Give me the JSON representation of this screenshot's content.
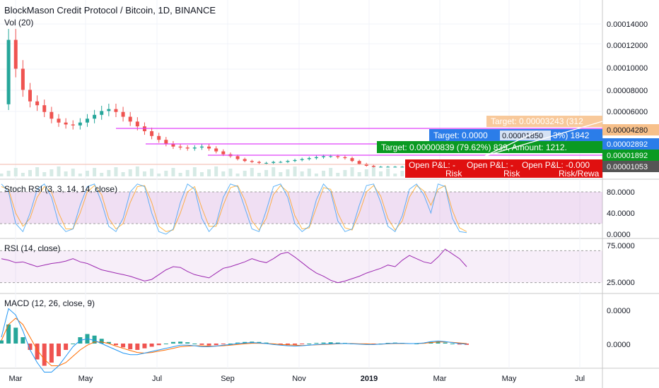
{
  "header": {
    "title": "BlockMason Credit Protocol / Bitcoin, 1D, BINANCE",
    "vol_label": "Vol (20)"
  },
  "colors": {
    "up": "#26a69a",
    "down": "#ef5350",
    "magenta": "#e040fb",
    "stoch_k": "#2196f3",
    "stoch_d": "#ff9800",
    "rsi": "#9c27b0",
    "macd_line": "#2196f3",
    "signal_line": "#ff6d00",
    "band_purple": "#9c27b0",
    "target_orange": "#f7c08a",
    "target_blue": "#2b7de9",
    "target_green": "#0a9a22",
    "stop_red": "#e01010"
  },
  "chart_data": [
    {
      "type": "candlestick",
      "name": "price",
      "x_labels": [
        "Mar",
        "May",
        "Jul",
        "Sep",
        "Nov",
        "2019",
        "Mar",
        "May",
        "Jul"
      ],
      "y_ticks": [
        "0.00014000",
        "0.00012000",
        "0.00010000",
        "0.00008000",
        "0.00006000"
      ],
      "ylim": [
        0.0,
        0.00016
      ],
      "close_series": [
        7.5e-05,
        0.000142,
        0.000112,
        9e-05,
        7.8e-05,
        7.4e-05,
        6.7e-05,
        6e-05,
        5.6e-05,
        5.4e-05,
        5.3e-05,
        5.6e-05,
        6e-05,
        6.4e-05,
        6.8e-05,
        7e-05,
        6.7e-05,
        6.2e-05,
        5.7e-05,
        5.2e-05,
        4.7e-05,
        4.2e-05,
        3.8e-05,
        3.4e-05,
        3.1e-05,
        3e-05,
        2.9e-05,
        3e-05,
        3.1e-05,
        2.9e-05,
        2.6e-05,
        2.3e-05,
        2.1e-05,
        1.8e-05,
        1.6e-05,
        1.5e-05,
        1.4e-05,
        1.4e-05,
        1.5e-05,
        1.5e-05,
        1.6e-05,
        1.7e-05,
        1.8e-05,
        1.9e-05,
        2e-05,
        2.1e-05,
        2.1e-05,
        2e-05,
        1.9e-05,
        1.6e-05,
        1.3e-05,
        1.1e-05,
        1e-05,
        1e-05,
        1e-05,
        1e-05,
        1e-05,
        9e-06,
        9e-06,
        9e-06,
        1e-05,
        1e-05,
        1e-05,
        1.1e-05,
        1e-05,
        1.1e-05
      ],
      "price_levels": [
        {
          "label": "0.00004280",
          "value": 4.28e-05
        },
        {
          "label": "0.00002892",
          "value": 2.892e-05
        },
        {
          "label": "0.00001892",
          "value": 1.892e-05
        },
        {
          "label": "0.00001053",
          "value": 1.053e-05
        }
      ],
      "annotations": {
        "target_orange": "Target: 0.00003243 (312",
        "target_blue": "Target: 0.0000",
        "target_blue_tail": "3%) 1842",
        "price_tag": "0.00001850",
        "target_green": "Target: 0.00000839 (79.62%) 839, Amount: 1212.",
        "open_pl": "Open P&L: -",
        "open_pl_2": "Open P&L: -",
        "open_pl_3": "Open P&L: -0.000",
        "risk": "Risk",
        "risk_2": "Risk",
        "risk_reward": "Risk/Rewa"
      }
    },
    {
      "type": "line",
      "name": "Stoch RSI",
      "title": "Stoch RSI (3, 3, 14, 14, close)",
      "y_ticks": [
        "80.0000",
        "40.0000",
        "0.0000"
      ],
      "ylim": [
        0,
        100
      ],
      "bands": [
        20,
        80
      ],
      "k_series": [
        95,
        80,
        20,
        5,
        40,
        85,
        95,
        70,
        20,
        5,
        10,
        55,
        90,
        95,
        60,
        15,
        5,
        30,
        80,
        95,
        90,
        40,
        5,
        0,
        10,
        60,
        95,
        85,
        30,
        5,
        20,
        70,
        95,
        90,
        50,
        10,
        5,
        45,
        90,
        95,
        70,
        20,
        5,
        15,
        65,
        95,
        80,
        25,
        5,
        10,
        55,
        92,
        95,
        60,
        15,
        5,
        35,
        85,
        95,
        75,
        40,
        95,
        90,
        30,
        5,
        3
      ],
      "d_series": [
        90,
        85,
        40,
        15,
        30,
        70,
        90,
        80,
        40,
        10,
        10,
        40,
        80,
        92,
        75,
        30,
        10,
        20,
        60,
        90,
        92,
        60,
        15,
        5,
        8,
        40,
        80,
        90,
        50,
        15,
        15,
        55,
        88,
        92,
        65,
        25,
        8,
        30,
        75,
        92,
        80,
        35,
        10,
        12,
        50,
        88,
        85,
        40,
        12,
        8,
        40,
        80,
        92,
        72,
        30,
        8,
        25,
        70,
        92,
        82,
        55,
        85,
        92,
        45,
        12,
        5
      ]
    },
    {
      "type": "line",
      "name": "RSI",
      "title": "RSI (14, close)",
      "y_ticks": [
        "75.0000",
        "25.0000"
      ],
      "ylim": [
        20,
        80
      ],
      "bands": [
        30,
        70
      ],
      "values": [
        60,
        58,
        55,
        56,
        53,
        50,
        52,
        54,
        55,
        57,
        60,
        56,
        54,
        50,
        46,
        44,
        42,
        40,
        38,
        35,
        32,
        34,
        40,
        46,
        50,
        49,
        44,
        40,
        38,
        36,
        42,
        48,
        50,
        53,
        56,
        60,
        57,
        55,
        60,
        66,
        68,
        62,
        55,
        48,
        42,
        38,
        33,
        30,
        32,
        35,
        38,
        42,
        45,
        48,
        52,
        50,
        58,
        64,
        60,
        56,
        54,
        62,
        72,
        66,
        60,
        50
      ]
    },
    {
      "type": "bar",
      "name": "MACD",
      "title": "MACD (12, 26, close, 9)",
      "y_ticks": [
        "0.0000",
        "0.0000"
      ],
      "x_labels": [
        "Mar",
        "May",
        "Jul",
        "Sep",
        "Nov",
        "2019",
        "Mar",
        "May",
        "Jul"
      ],
      "histogram": [
        0.1,
        0.6,
        0.5,
        0.2,
        -0.2,
        -0.5,
        -0.7,
        -0.6,
        -0.4,
        -0.2,
        0.0,
        0.2,
        0.3,
        0.25,
        0.15,
        0.05,
        -0.05,
        -0.12,
        -0.18,
        -0.2,
        -0.15,
        -0.1,
        -0.05,
        0.0,
        0.05,
        0.06,
        0.04,
        0.0,
        -0.04,
        -0.06,
        -0.05,
        -0.02,
        0.0,
        0.03,
        0.05,
        0.06,
        0.05,
        0.03,
        0.0,
        -0.03,
        -0.05,
        -0.04,
        -0.02,
        0.0,
        0.02,
        0.03,
        0.04,
        0.03,
        0.02,
        0.0,
        -0.02,
        -0.03,
        -0.02,
        0.0,
        0.02,
        0.03,
        0.02,
        0.01,
        0.0,
        0.02,
        0.05,
        0.06,
        0.03,
        0.0,
        -0.03,
        -0.04
      ],
      "macd_series": [
        0.2,
        1.1,
        0.9,
        0.4,
        -0.2,
        -0.6,
        -0.9,
        -0.9,
        -0.7,
        -0.4,
        -0.1,
        0.1,
        0.15,
        0.1,
        0.0,
        -0.1,
        -0.2,
        -0.3,
        -0.35,
        -0.35,
        -0.3,
        -0.25,
        -0.2,
        -0.15,
        -0.1,
        -0.05,
        -0.05,
        -0.07,
        -0.1,
        -0.1,
        -0.08,
        -0.05,
        -0.03,
        0.0,
        0.02,
        0.03,
        0.02,
        0.0,
        -0.03,
        -0.05,
        -0.07,
        -0.08,
        -0.07,
        -0.05,
        -0.03,
        -0.02,
        -0.01,
        0.0,
        0.0,
        -0.01,
        -0.02,
        -0.03,
        -0.03,
        -0.02,
        0.0,
        0.01,
        0.01,
        0.0,
        0.0,
        0.02,
        0.06,
        0.08,
        0.06,
        0.03,
        0.0,
        -0.02
      ],
      "signal_series": [
        0.1,
        0.6,
        0.8,
        0.6,
        0.2,
        -0.2,
        -0.5,
        -0.7,
        -0.7,
        -0.6,
        -0.4,
        -0.2,
        -0.05,
        0.05,
        0.05,
        0.0,
        -0.08,
        -0.15,
        -0.22,
        -0.28,
        -0.3,
        -0.28,
        -0.24,
        -0.2,
        -0.15,
        -0.1,
        -0.08,
        -0.07,
        -0.07,
        -0.08,
        -0.08,
        -0.07,
        -0.05,
        -0.03,
        -0.01,
        0.01,
        0.01,
        0.0,
        -0.01,
        -0.03,
        -0.04,
        -0.05,
        -0.06,
        -0.05,
        -0.04,
        -0.03,
        -0.02,
        -0.01,
        0.0,
        0.0,
        -0.01,
        -0.01,
        -0.02,
        -0.02,
        -0.01,
        0.0,
        0.0,
        0.0,
        0.0,
        0.01,
        0.03,
        0.05,
        0.05,
        0.04,
        0.02,
        0.0
      ]
    }
  ]
}
